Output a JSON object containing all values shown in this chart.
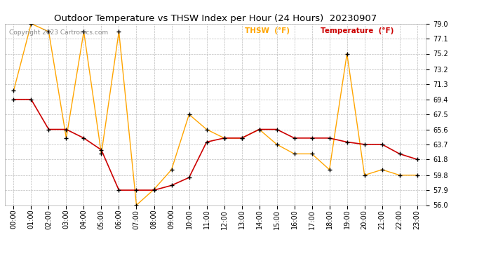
{
  "title": "Outdoor Temperature vs THSW Index per Hour (24 Hours)  20230907",
  "copyright": "Copyright 2023 Cartronics.com",
  "legend_thsw": "THSW  (°F)",
  "legend_temp": "Temperature  (°F)",
  "hours": [
    0,
    1,
    2,
    3,
    4,
    5,
    6,
    7,
    8,
    9,
    10,
    11,
    12,
    13,
    14,
    15,
    16,
    17,
    18,
    19,
    20,
    21,
    22,
    23
  ],
  "temperature": [
    69.4,
    69.4,
    65.6,
    65.6,
    64.5,
    63.0,
    57.9,
    57.9,
    57.9,
    58.5,
    59.5,
    64.0,
    64.5,
    64.5,
    65.6,
    65.6,
    64.5,
    64.5,
    64.5,
    64.0,
    63.7,
    63.7,
    62.5,
    61.8
  ],
  "thsw": [
    70.5,
    79.0,
    78.0,
    64.5,
    78.0,
    62.5,
    78.0,
    56.0,
    58.0,
    60.5,
    67.5,
    65.6,
    64.5,
    64.5,
    65.6,
    63.7,
    62.5,
    62.5,
    60.5,
    75.2,
    59.8,
    60.5,
    59.8,
    59.8
  ],
  "ylim": [
    56.0,
    79.0
  ],
  "yticks": [
    56.0,
    57.9,
    59.8,
    61.8,
    63.7,
    65.6,
    67.5,
    69.4,
    71.3,
    73.2,
    75.2,
    77.1,
    79.0
  ],
  "bg_color": "#ffffff",
  "grid_color": "#bbbbbb",
  "temp_color": "#cc0000",
  "thsw_color": "#ffa500",
  "title_color": "#000000",
  "legend_thsw_color": "#ffa500",
  "legend_temp_color": "#cc0000",
  "marker_color": "#000000",
  "copyright_color": "#888888",
  "figwidth": 6.9,
  "figheight": 3.75,
  "dpi": 100
}
